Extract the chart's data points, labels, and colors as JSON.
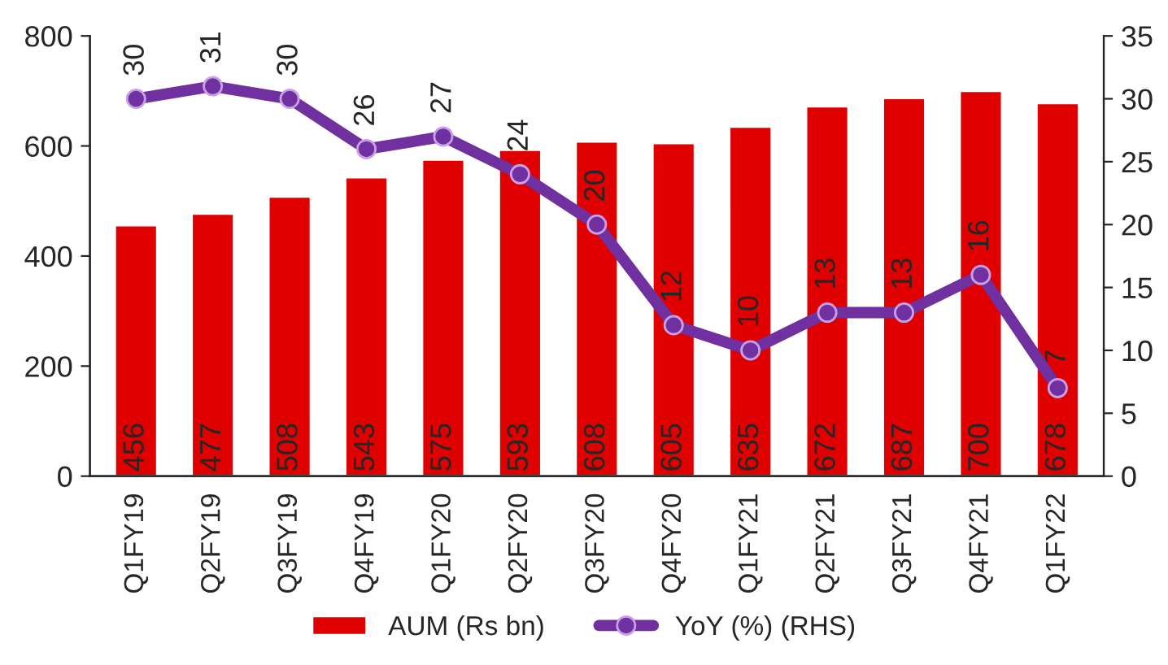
{
  "chart_data": {
    "type": "bar",
    "categories": [
      "Q1FY19",
      "Q2FY19",
      "Q3FY19",
      "Q4FY19",
      "Q1FY20",
      "Q2FY20",
      "Q3FY20",
      "Q4FY20",
      "Q1FY21",
      "Q2FY21",
      "Q3FY21",
      "Q4FY21",
      "Q1FY22"
    ],
    "series": [
      {
        "name": "AUM (Rs bn)",
        "color": "#e00000",
        "values": [
          456,
          477,
          508,
          543,
          575,
          593,
          608,
          605,
          635,
          672,
          687,
          700,
          678
        ]
      },
      {
        "name": "YoY (%) (RHS)",
        "color": "#7030a0",
        "type": "line",
        "axis": "y2",
        "marker": "circle",
        "values": [
          30,
          31,
          30,
          26,
          27,
          24,
          20,
          12,
          10,
          13,
          13,
          16,
          7
        ]
      }
    ],
    "data_labels": true,
    "ylim": [
      0,
      800
    ],
    "yticks": [
      0,
      200,
      400,
      600,
      800
    ],
    "y2lim": [
      0,
      35
    ],
    "y2ticks": [
      0,
      5,
      10,
      15,
      20,
      25,
      30,
      35
    ],
    "legend": "bottom",
    "grid": false
  }
}
